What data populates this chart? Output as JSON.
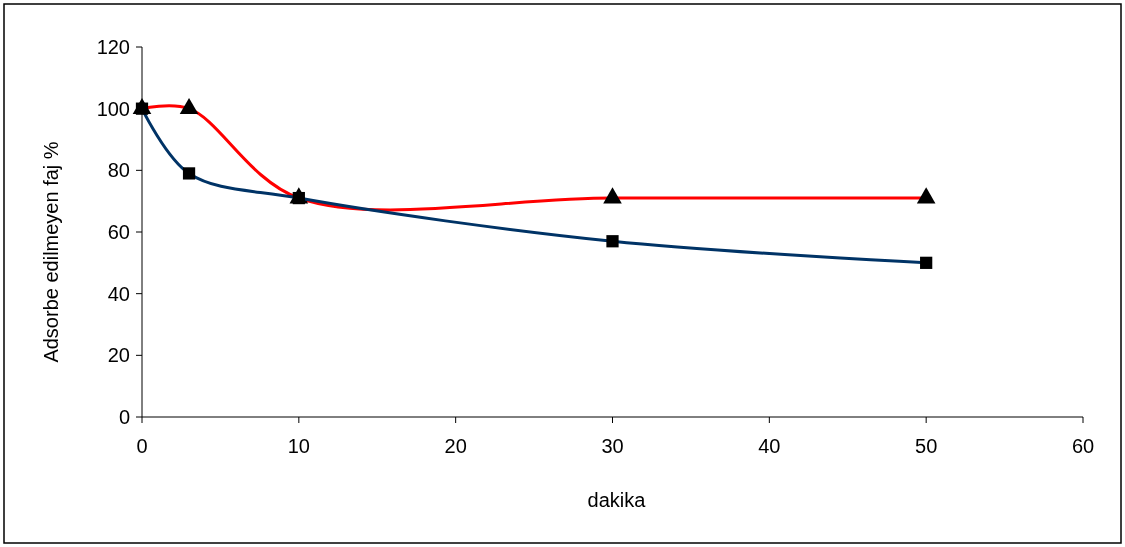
{
  "chart_data": {
    "type": "line",
    "xlabel": "dakika",
    "ylabel": "Adsorbe edilmeyen faj %",
    "x": [
      0,
      3,
      10,
      30,
      50
    ],
    "xlim": [
      0,
      60
    ],
    "xticks": [
      0,
      10,
      20,
      30,
      40,
      50,
      60
    ],
    "ylim": [
      0,
      120
    ],
    "yticks": [
      0,
      20,
      40,
      60,
      80,
      100,
      120
    ],
    "grid": false,
    "series": [
      {
        "color": "#ff0000",
        "values": [
          100,
          100,
          71,
          71,
          71
        ],
        "marker": "triangle"
      },
      {
        "color": "#003366",
        "values": [
          100,
          79,
          71,
          57,
          50
        ],
        "marker": "square"
      }
    ]
  }
}
